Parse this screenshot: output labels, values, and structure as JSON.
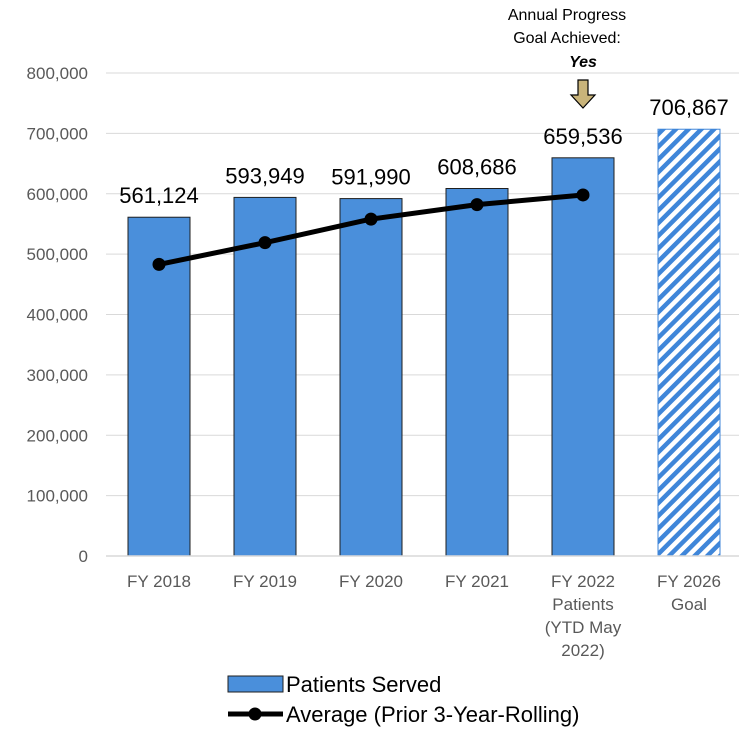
{
  "colors": {
    "bar": "#4a8fdb",
    "bar_border": "#1f1f1f",
    "line": "#000000",
    "goal_stripe": "#3f86d9",
    "arrow_fill": "#c9b47a",
    "grid": "#d9d9d9",
    "tick_text": "#595959"
  },
  "chart_data": {
    "type": "bar",
    "categories": [
      [
        "FY 2018"
      ],
      [
        "FY 2019"
      ],
      [
        "FY 2020"
      ],
      [
        "FY 2021"
      ],
      [
        "FY 2022",
        "Patients",
        "(YTD May",
        "2022)"
      ],
      [
        "FY 2026",
        "Goal"
      ]
    ],
    "series": [
      {
        "name": "Patients Served",
        "type": "bar",
        "values": [
          561124,
          593949,
          591990,
          608686,
          659536,
          706867
        ],
        "labels": [
          "561,124",
          "593,949",
          "591,990",
          "608,686",
          "659,536",
          "706,867"
        ],
        "hatched_index": 5
      },
      {
        "name": "Average (Prior 3-Year-Rolling)",
        "type": "line",
        "values": [
          483000,
          519000,
          558000,
          582000,
          598000,
          null
        ]
      }
    ],
    "ylim": [
      0,
      800000
    ],
    "yticks": [
      0,
      100000,
      200000,
      300000,
      400000,
      500000,
      600000,
      700000,
      800000
    ],
    "ytick_labels": [
      "0",
      "100,000",
      "200,000",
      "300,000",
      "400,000",
      "500,000",
      "600,000",
      "700,000",
      "800,000"
    ],
    "grid": true,
    "legend_position": "bottom",
    "annotation": {
      "lines": [
        "Annual Progress",
        "Goal Achieved:"
      ],
      "emphasis": "Yes",
      "target_index": 4
    }
  }
}
